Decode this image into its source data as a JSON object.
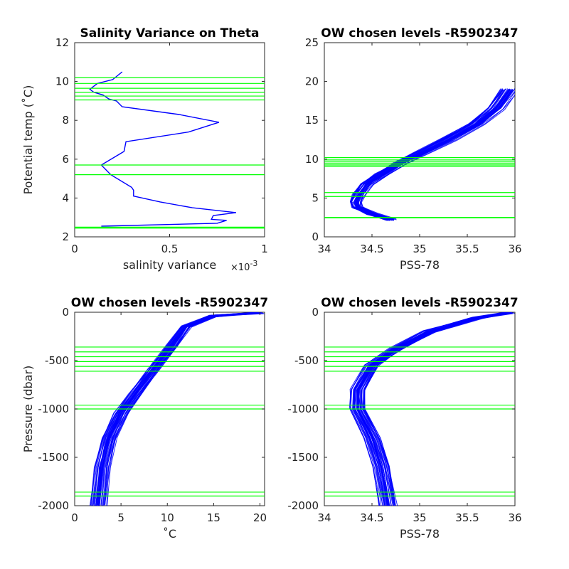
{
  "chart_data": [
    {
      "type": "line",
      "title": "Salinity Variance on Theta",
      "xlabel": "salinity variance",
      "x_exponent_label": "×10",
      "x_exponent_power": "-3",
      "ylabel": "Potential temp (˚C)",
      "xlim": [
        0,
        1
      ],
      "ylim": [
        2,
        12
      ],
      "xticks": [
        "0",
        "0.5",
        "1"
      ],
      "yticks": [
        "2",
        "4",
        "6",
        "8",
        "10",
        "12"
      ],
      "y_reversed": false,
      "series": [
        {
          "color": "#0000ff",
          "points": [
            [
              0.25,
              10.5
            ],
            [
              0.2,
              10.1
            ],
            [
              0.12,
              9.9
            ],
            [
              0.08,
              9.6
            ],
            [
              0.1,
              9.45
            ],
            [
              0.15,
              9.3
            ],
            [
              0.18,
              9.1
            ],
            [
              0.22,
              9.0
            ],
            [
              0.25,
              8.7
            ],
            [
              0.55,
              8.3
            ],
            [
              0.76,
              7.9
            ],
            [
              0.6,
              7.4
            ],
            [
              0.27,
              6.9
            ],
            [
              0.26,
              6.4
            ],
            [
              0.14,
              5.7
            ],
            [
              0.19,
              5.2
            ],
            [
              0.3,
              4.55
            ],
            [
              0.31,
              4.4
            ],
            [
              0.31,
              4.1
            ],
            [
              0.45,
              3.8
            ],
            [
              0.62,
              3.5
            ],
            [
              0.85,
              3.25
            ],
            [
              0.73,
              3.1
            ],
            [
              0.72,
              2.9
            ],
            [
              0.8,
              2.85
            ],
            [
              0.75,
              2.7
            ],
            [
              0.14,
              2.55
            ]
          ]
        }
      ],
      "hlines": {
        "color": "#00ff00",
        "values": [
          10.2,
          9.9,
          9.65,
          9.45,
          9.25,
          9.05,
          5.7,
          5.2,
          2.5,
          2.45
        ]
      }
    },
    {
      "type": "line",
      "title": "OW chosen levels -R5902347",
      "xlabel": "PSS-78",
      "ylabel": "",
      "xlim": [
        34,
        36
      ],
      "ylim": [
        0,
        25
      ],
      "xticks": [
        "34",
        "34.5",
        "35",
        "35.5",
        "36"
      ],
      "yticks": [
        "0",
        "5",
        "10",
        "15",
        "20",
        "25"
      ],
      "y_reversed": false,
      "series": [
        {
          "color": "#0000ff",
          "points": [
            [
              34.7,
              2.2
            ],
            [
              34.5,
              3.0
            ],
            [
              34.35,
              3.8
            ],
            [
              34.33,
              4.5
            ],
            [
              34.37,
              5.5
            ],
            [
              34.45,
              6.8
            ],
            [
              34.6,
              8.0
            ],
            [
              34.8,
              9.5
            ],
            [
              35.0,
              10.7
            ],
            [
              35.3,
              12.5
            ],
            [
              35.6,
              14.5
            ],
            [
              35.8,
              16.5
            ],
            [
              35.95,
              19.0
            ]
          ]
        }
      ],
      "hlines": {
        "color": "#00ff00",
        "values": [
          10.2,
          9.9,
          9.65,
          9.45,
          9.25,
          9.05,
          5.7,
          5.2,
          2.5,
          2.45
        ]
      }
    },
    {
      "type": "line",
      "title": "OW chosen levels -R5902347",
      "xlabel": "˚C",
      "ylabel": "Pressure (dbar)",
      "xlim": [
        0,
        20.5
      ],
      "ylim": [
        -2000,
        0
      ],
      "xticks": [
        "0",
        "5",
        "10",
        "15",
        "20"
      ],
      "yticks": [
        "-2000",
        "-1500",
        "-1000",
        "-500",
        "0"
      ],
      "y_reversed": false,
      "series": [
        {
          "color": "#0000ff",
          "points": [
            [
              20.0,
              -5
            ],
            [
              15.0,
              -40
            ],
            [
              12.0,
              -150
            ],
            [
              10.5,
              -350
            ],
            [
              8.5,
              -600
            ],
            [
              6.5,
              -850
            ],
            [
              5.0,
              -1050
            ],
            [
              3.8,
              -1300
            ],
            [
              3.0,
              -1600
            ],
            [
              2.6,
              -2000
            ]
          ]
        }
      ],
      "hlines": {
        "color": "#00ff00",
        "values": [
          -360,
          -410,
          -460,
          -510,
          -560,
          -610,
          -960,
          -1000,
          -1860,
          -1900
        ]
      }
    },
    {
      "type": "line",
      "title": "OW chosen levels -R5902347",
      "xlabel": "PSS-78",
      "ylabel": "",
      "xlim": [
        34,
        36
      ],
      "ylim": [
        -2000,
        0
      ],
      "xticks": [
        "34",
        "34.5",
        "35",
        "35.5",
        "36"
      ],
      "yticks": [
        "-2000",
        "-1500",
        "-1000",
        "-500",
        "0"
      ],
      "y_reversed": false,
      "series": [
        {
          "color": "#0000ff",
          "points": [
            [
              35.95,
              -5
            ],
            [
              35.6,
              -60
            ],
            [
              35.1,
              -200
            ],
            [
              34.75,
              -380
            ],
            [
              34.5,
              -550
            ],
            [
              34.35,
              -800
            ],
            [
              34.35,
              -1000
            ],
            [
              34.5,
              -1300
            ],
            [
              34.6,
              -1600
            ],
            [
              34.67,
              -2000
            ]
          ]
        }
      ],
      "hlines": {
        "color": "#00ff00",
        "values": [
          -360,
          -410,
          -460,
          -510,
          -560,
          -610,
          -960,
          -1000,
          -1860,
          -1900
        ]
      }
    }
  ]
}
